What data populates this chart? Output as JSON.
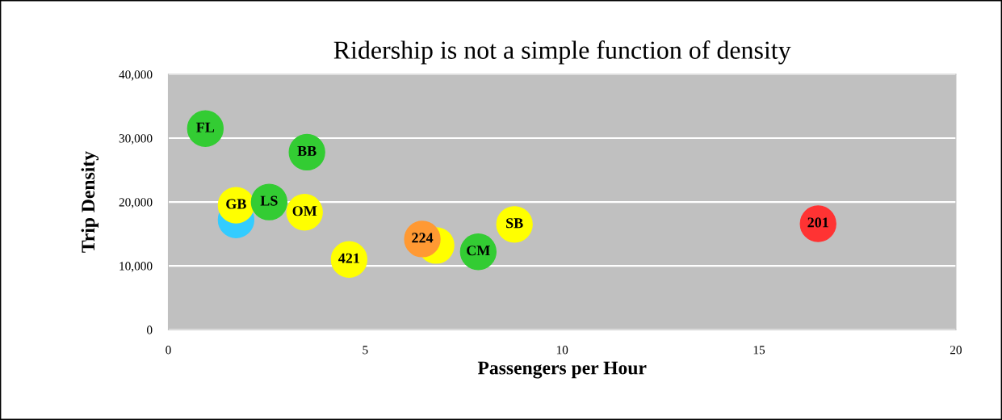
{
  "chart_data": {
    "type": "scatter",
    "title": "Ridership is not a simple function of density",
    "xlabel": "Passengers per Hour",
    "ylabel": "Trip Density",
    "x": [
      0.94,
      3.52,
      1.72,
      1.72,
      2.56,
      3.46,
      4.59,
      6.8,
      6.45,
      7.87,
      8.79,
      16.5
    ],
    "values": [
      31500,
      27800,
      17200,
      19500,
      20000,
      18400,
      11000,
      13200,
      14200,
      12200,
      16500,
      16600
    ],
    "annotations": [
      {
        "text": "FL",
        "x": 0.94,
        "y": 31500
      },
      {
        "text": "BB",
        "x": 3.52,
        "y": 27800
      },
      {
        "text": "GB",
        "x": 1.72,
        "y": 19500
      },
      {
        "text": "LS",
        "x": 2.56,
        "y": 20000
      },
      {
        "text": "OM",
        "x": 3.46,
        "y": 18400
      },
      {
        "text": "421",
        "x": 4.59,
        "y": 11000
      },
      {
        "text": "224",
        "x": 6.45,
        "y": 14200
      },
      {
        "text": "CM",
        "x": 7.87,
        "y": 12200
      },
      {
        "text": "SB",
        "x": 8.79,
        "y": 16500
      },
      {
        "text": "201",
        "x": 16.5,
        "y": 16600
      }
    ],
    "colors": [
      "#33cc33",
      "#33cc33",
      "#33ccff",
      "#ffff00",
      "#33cc33",
      "#ffff00",
      "#ffff00",
      "#ffff00",
      "#ff9933",
      "#33cc33",
      "#ffff00",
      "#ff3333"
    ],
    "xlim": [
      0,
      20
    ],
    "xticks": [
      0,
      5,
      10,
      15,
      20
    ],
    "ylim": [
      0,
      40000
    ],
    "yticks": [
      {
        "value": 0,
        "label": "0"
      },
      {
        "value": 10000,
        "label": "10,000"
      },
      {
        "value": 20000,
        "label": "20,000"
      },
      {
        "value": 30000,
        "label": "30,000"
      },
      {
        "value": 40000,
        "label": "40,000"
      }
    ],
    "grid": "y",
    "legend": false
  }
}
